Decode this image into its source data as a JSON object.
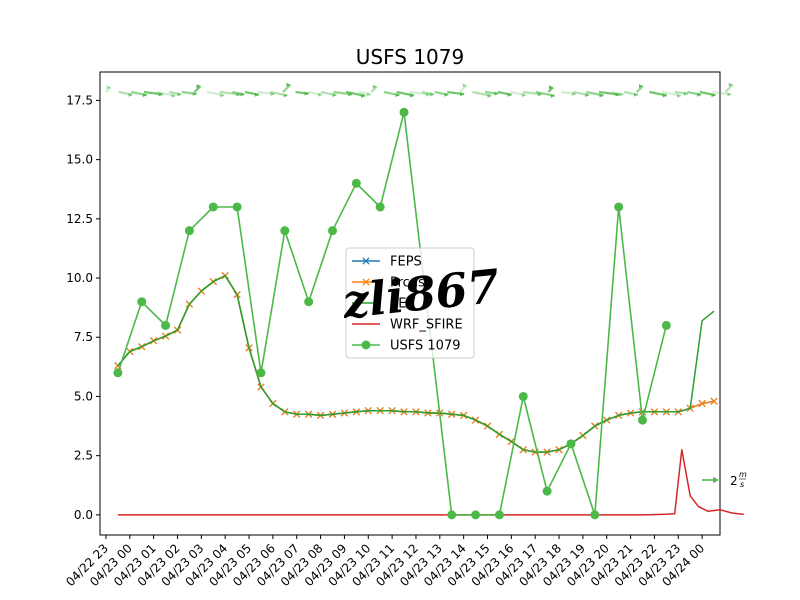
{
  "chart_data": {
    "type": "line",
    "title": "USFS 1079",
    "xlabel": "",
    "ylabel": "",
    "ylim": [
      -0.85,
      18.7
    ],
    "yticks": [
      "0.0",
      "2.5",
      "5.0",
      "7.5",
      "10.0",
      "12.5",
      "15.0",
      "17.5"
    ],
    "ytick_values": [
      0,
      2.5,
      5,
      7.5,
      10,
      12.5,
      15,
      17.5
    ],
    "xlim_hours": [
      -1.5,
      50.5
    ],
    "xticks": [
      "04/22 23",
      "04/23 00",
      "04/23 01",
      "04/23 02",
      "04/23 03",
      "04/23 04",
      "04/23 05",
      "04/23 06",
      "04/23 07",
      "04/23 08",
      "04/23 09",
      "04/23 10",
      "04/23 11",
      "04/23 12",
      "04/23 13",
      "04/23 14",
      "04/23 15",
      "04/23 16",
      "04/23 17",
      "04/23 18",
      "04/23 19",
      "04/23 20",
      "04/23 21",
      "04/23 22",
      "04/23 23",
      "04/24 00"
    ],
    "grid": false,
    "legend_position": "center",
    "series": [
      {
        "name": "FEPS",
        "color": "#1f77b4",
        "marker": "x",
        "x_hours": [
          0,
          1,
          2,
          3,
          4,
          5,
          6,
          7,
          8,
          9,
          10,
          11,
          12,
          13,
          14,
          15,
          16,
          17,
          18,
          19,
          20,
          21,
          22,
          23,
          24,
          25,
          26,
          27,
          28,
          29,
          30,
          31,
          32,
          33,
          34,
          35,
          36,
          37,
          38,
          39,
          40,
          41,
          42,
          43,
          44,
          45,
          46,
          47,
          48,
          49,
          50
        ],
        "values": [
          6.3,
          6.9,
          7.1,
          7.35,
          7.55,
          7.8,
          8.9,
          9.45,
          9.85,
          10.1,
          9.3,
          7.05,
          5.4,
          4.7,
          4.35,
          4.25,
          4.25,
          4.2,
          4.25,
          4.3,
          4.35,
          4.4,
          4.4,
          4.4,
          4.35,
          4.35,
          4.3,
          4.3,
          4.25,
          4.2,
          4.0,
          3.75,
          3.4,
          3.1,
          2.75,
          2.65,
          2.65,
          2.75,
          3.0,
          3.35,
          3.75,
          4.0,
          4.2,
          4.3,
          4.35,
          4.35,
          4.35,
          4.35,
          4.5,
          4.7,
          4.8
        ]
      },
      {
        "name": "Prcgs",
        "color": "#ff7f0e",
        "marker": "x",
        "x_hours": [
          0,
          1,
          2,
          3,
          4,
          5,
          6,
          7,
          8,
          9,
          10,
          11,
          12,
          13,
          14,
          15,
          16,
          17,
          18,
          19,
          20,
          21,
          22,
          23,
          24,
          25,
          26,
          27,
          28,
          29,
          30,
          31,
          32,
          33,
          34,
          35,
          36,
          37,
          38,
          39,
          40,
          41,
          42,
          43,
          44,
          45,
          46,
          47,
          48,
          49,
          50
        ],
        "values": [
          6.3,
          6.9,
          7.1,
          7.35,
          7.55,
          7.8,
          8.9,
          9.45,
          9.85,
          10.1,
          9.3,
          7.05,
          5.4,
          4.7,
          4.35,
          4.25,
          4.25,
          4.2,
          4.25,
          4.3,
          4.35,
          4.4,
          4.4,
          4.4,
          4.35,
          4.35,
          4.3,
          4.3,
          4.25,
          4.2,
          4.0,
          3.75,
          3.4,
          3.1,
          2.75,
          2.65,
          2.65,
          2.75,
          3.0,
          3.35,
          3.75,
          4.0,
          4.2,
          4.3,
          4.35,
          4.35,
          4.35,
          4.35,
          4.5,
          4.7,
          4.8
        ]
      },
      {
        "name": "SEV",
        "color": "#2ca02c",
        "marker": "",
        "x_hours": [
          0,
          1,
          2,
          3,
          4,
          5,
          6,
          7,
          8,
          9,
          10,
          11,
          12,
          13,
          14,
          15,
          16,
          17,
          18,
          19,
          20,
          21,
          22,
          23,
          24,
          25,
          26,
          27,
          28,
          29,
          30,
          31,
          32,
          33,
          34,
          35,
          36,
          37,
          38,
          39,
          40,
          41,
          42,
          43,
          44,
          45,
          46,
          47,
          48,
          49,
          50
        ],
        "values": [
          6.3,
          6.9,
          7.1,
          7.35,
          7.55,
          7.8,
          8.9,
          9.45,
          9.85,
          10.1,
          9.3,
          7.05,
          5.4,
          4.7,
          4.35,
          4.25,
          4.25,
          4.2,
          4.25,
          4.3,
          4.35,
          4.4,
          4.4,
          4.4,
          4.35,
          4.35,
          4.3,
          4.3,
          4.25,
          4.2,
          4.0,
          3.75,
          3.4,
          3.1,
          2.75,
          2.65,
          2.65,
          2.75,
          3.0,
          3.35,
          3.75,
          4.0,
          4.2,
          4.3,
          4.35,
          4.35,
          4.35,
          4.35,
          4.5,
          8.2,
          8.6
        ]
      },
      {
        "name": "WRF_SFIRE",
        "color": "#d62728",
        "marker": "",
        "x_hours": [
          0,
          44,
          46,
          46.7,
          47.3,
          48,
          48.7,
          49.5,
          50.5,
          51.5,
          52.5
        ],
        "values": [
          0,
          0,
          0.03,
          0.05,
          2.75,
          0.8,
          0.35,
          0.15,
          0.22,
          0.08,
          0.02
        ]
      },
      {
        "name": "USFS 1079",
        "color": "#4cb848",
        "marker": "o",
        "x_hours": [
          0,
          2,
          4,
          6,
          8,
          10,
          12,
          14,
          16,
          18,
          20,
          22,
          24,
          26,
          28,
          30,
          32,
          34,
          36,
          38,
          40,
          42,
          44,
          46
        ],
        "values": [
          6,
          9,
          8,
          12,
          13,
          13,
          6,
          12,
          9,
          12,
          14,
          13,
          17,
          null,
          0,
          0,
          0,
          5,
          1,
          3,
          0,
          13,
          4,
          8
        ]
      }
    ]
  },
  "quiver": {
    "key_label": "2",
    "key_unit_numerator": "m",
    "key_unit_denominator": "s",
    "color": "#4cb848"
  },
  "watermark": {
    "text": "zli867"
  }
}
